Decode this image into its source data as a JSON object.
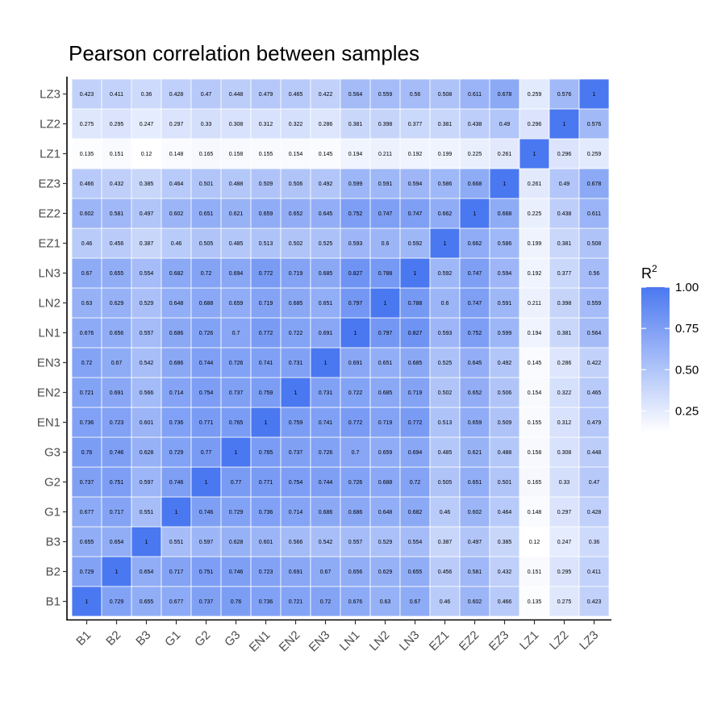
{
  "chart_data": {
    "type": "heatmap",
    "title": "Pearson correlation between samples",
    "legend": {
      "title_base": "R",
      "title_sup": "2",
      "ticks": [
        "1.00",
        "0.75",
        "0.50",
        "0.25"
      ],
      "tick_values": [
        1.0,
        0.75,
        0.5,
        0.25
      ],
      "range": [
        0.12,
        1.0
      ],
      "low_color": "#ffffff",
      "high_color": "#4a78f0",
      "placement": "right"
    },
    "x_labels": [
      "B1",
      "B2",
      "B3",
      "G1",
      "G2",
      "G3",
      "EN1",
      "EN2",
      "EN3",
      "LN1",
      "LN2",
      "LN3",
      "EZ1",
      "EZ2",
      "EZ3",
      "LZ1",
      "LZ2",
      "LZ3"
    ],
    "y_labels": [
      "B1",
      "B2",
      "B3",
      "G1",
      "G2",
      "G3",
      "EN1",
      "EN2",
      "EN3",
      "LN1",
      "LN2",
      "LN3",
      "EZ1",
      "EZ2",
      "EZ3",
      "LZ1",
      "LZ2",
      "LZ3"
    ],
    "cell_labels": [
      [
        "1",
        "0.729",
        "0.655",
        "0.677",
        "0.737",
        "0.76",
        "0.736",
        "0.721",
        "0.72",
        "0.676",
        "0.63",
        "0.67",
        "0.46",
        "0.602",
        "0.466",
        "0.135",
        "0.275",
        "0.423"
      ],
      [
        "0.729",
        "1",
        "0.654",
        "0.717",
        "0.751",
        "0.746",
        "0.723",
        "0.691",
        "0.67",
        "0.656",
        "0.629",
        "0.655",
        "0.456",
        "0.581",
        "0.432",
        "0.151",
        "0.295",
        "0.411"
      ],
      [
        "0.655",
        "0.654",
        "1",
        "0.551",
        "0.597",
        "0.628",
        "0.601",
        "0.566",
        "0.542",
        "0.557",
        "0.529",
        "0.554",
        "0.387",
        "0.497",
        "0.385",
        "0.12",
        "0.247",
        "0.36"
      ],
      [
        "0.677",
        "0.717",
        "0.551",
        "1",
        "0.746",
        "0.729",
        "0.736",
        "0.714",
        "0.686",
        "0.686",
        "0.648",
        "0.682",
        "0.46",
        "0.602",
        "0.464",
        "0.148",
        "0.297",
        "0.428"
      ],
      [
        "0.737",
        "0.751",
        "0.597",
        "0.746",
        "1",
        "0.77",
        "0.771",
        "0.754",
        "0.744",
        "0.726",
        "0.688",
        "0.72",
        "0.505",
        "0.651",
        "0.501",
        "0.165",
        "0.33",
        "0.47"
      ],
      [
        "0.76",
        "0.746",
        "0.628",
        "0.729",
        "0.77",
        "1",
        "0.765",
        "0.737",
        "0.726",
        "0.7",
        "0.659",
        "0.694",
        "0.485",
        "0.621",
        "0.488",
        "0.158",
        "0.308",
        "0.448"
      ],
      [
        "0.736",
        "0.723",
        "0.601",
        "0.736",
        "0.771",
        "0.765",
        "1",
        "0.759",
        "0.741",
        "0.772",
        "0.719",
        "0.772",
        "0.513",
        "0.659",
        "0.509",
        "0.155",
        "0.312",
        "0.479"
      ],
      [
        "0.721",
        "0.691",
        "0.566",
        "0.714",
        "0.754",
        "0.737",
        "0.759",
        "1",
        "0.731",
        "0.722",
        "0.685",
        "0.719",
        "0.502",
        "0.652",
        "0.506",
        "0.154",
        "0.322",
        "0.465"
      ],
      [
        "0.72",
        "0.67",
        "0.542",
        "0.686",
        "0.744",
        "0.726",
        "0.741",
        "0.731",
        "1",
        "0.691",
        "0.651",
        "0.685",
        "0.525",
        "0.645",
        "0.492",
        "0.145",
        "0.286",
        "0.422"
      ],
      [
        "0.676",
        "0.656",
        "0.557",
        "0.686",
        "0.726",
        "0.7",
        "0.772",
        "0.722",
        "0.691",
        "1",
        "0.797",
        "0.827",
        "0.593",
        "0.752",
        "0.599",
        "0.194",
        "0.381",
        "0.564"
      ],
      [
        "0.63",
        "0.629",
        "0.529",
        "0.648",
        "0.688",
        "0.659",
        "0.719",
        "0.685",
        "0.651",
        "0.797",
        "1",
        "0.788",
        "0.6",
        "0.747",
        "0.591",
        "0.211",
        "0.398",
        "0.559"
      ],
      [
        "0.67",
        "0.655",
        "0.554",
        "0.682",
        "0.72",
        "0.694",
        "0.772",
        "0.719",
        "0.685",
        "0.827",
        "0.788",
        "1",
        "0.592",
        "0.747",
        "0.594",
        "0.192",
        "0.377",
        "0.56"
      ],
      [
        "0.46",
        "0.456",
        "0.387",
        "0.46",
        "0.505",
        "0.485",
        "0.513",
        "0.502",
        "0.525",
        "0.593",
        "0.6",
        "0.592",
        "1",
        "0.662",
        "0.586",
        "0.199",
        "0.381",
        "0.508"
      ],
      [
        "0.602",
        "0.581",
        "0.497",
        "0.602",
        "0.651",
        "0.621",
        "0.659",
        "0.652",
        "0.645",
        "0.752",
        "0.747",
        "0.747",
        "0.662",
        "1",
        "0.668",
        "0.225",
        "0.438",
        "0.611"
      ],
      [
        "0.466",
        "0.432",
        "0.385",
        "0.464",
        "0.501",
        "0.488",
        "0.509",
        "0.506",
        "0.492",
        "0.599",
        "0.591",
        "0.594",
        "0.586",
        "0.668",
        "1",
        "0.261",
        "0.49",
        "0.678"
      ],
      [
        "0.135",
        "0.151",
        "0.12",
        "0.148",
        "0.165",
        "0.158",
        "0.155",
        "0.154",
        "0.145",
        "0.194",
        "0.211",
        "0.192",
        "0.199",
        "0.225",
        "0.261",
        "1",
        "0.296",
        "0.259"
      ],
      [
        "0.275",
        "0.295",
        "0.247",
        "0.297",
        "0.33",
        "0.308",
        "0.312",
        "0.322",
        "0.286",
        "0.381",
        "0.398",
        "0.377",
        "0.381",
        "0.438",
        "0.49",
        "0.296",
        "1",
        "0.576"
      ],
      [
        "0.423",
        "0.411",
        "0.36",
        "0.428",
        "0.47",
        "0.448",
        "0.479",
        "0.465",
        "0.422",
        "0.564",
        "0.559",
        "0.56",
        "0.508",
        "0.611",
        "0.678",
        "0.259",
        "0.576",
        "1"
      ]
    ]
  }
}
